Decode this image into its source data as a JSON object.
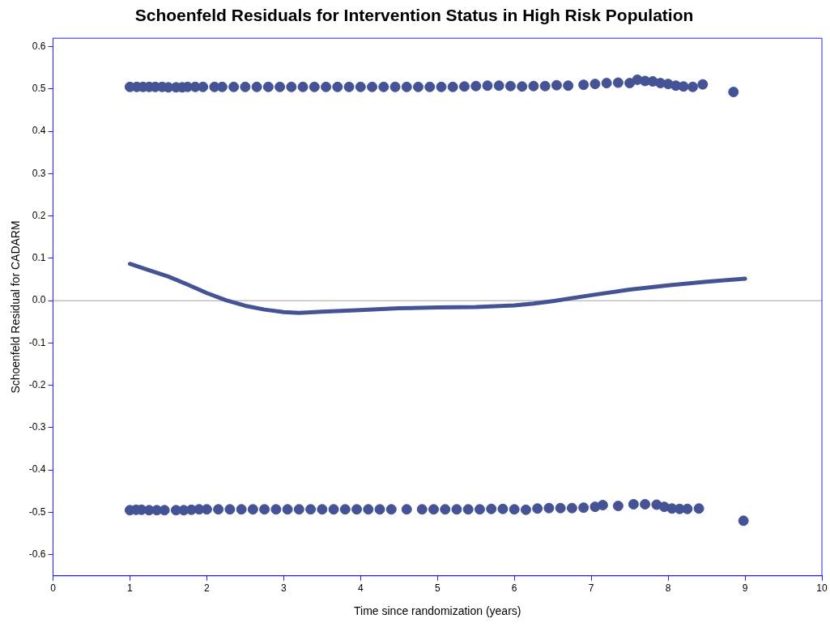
{
  "chart_data": {
    "type": "scatter",
    "title": "Schoenfeld Residuals for Intervention Status in High Risk Population",
    "xlabel": "Time since randomization (years)",
    "ylabel": "Schoenfeld Residual for CADARM",
    "series": [
      {
        "type": "scatter",
        "color": "#445395",
        "x": [
          1.0,
          1.09,
          1.17,
          1.25,
          1.33,
          1.42,
          1.5,
          1.6,
          1.68,
          1.75,
          1.85,
          1.95,
          2.1,
          2.2,
          2.35,
          2.5,
          2.65,
          2.8,
          2.95,
          3.1,
          3.25,
          3.4,
          3.55,
          3.7,
          3.85,
          4.0,
          4.15,
          4.3,
          4.45,
          4.6,
          4.75,
          4.9,
          5.05,
          5.2,
          5.35,
          5.5,
          5.65,
          5.8,
          5.95,
          6.1,
          6.25,
          6.4,
          6.55,
          6.7,
          6.9,
          7.05,
          7.2,
          7.35,
          7.5,
          7.6,
          7.7,
          7.8,
          7.9,
          8.0,
          8.1,
          8.2,
          8.32,
          8.45,
          8.85
        ],
        "values": [
          0.505,
          0.505,
          0.505,
          0.505,
          0.505,
          0.505,
          0.504,
          0.504,
          0.504,
          0.505,
          0.505,
          0.505,
          0.505,
          0.505,
          0.505,
          0.505,
          0.505,
          0.505,
          0.505,
          0.505,
          0.505,
          0.505,
          0.505,
          0.505,
          0.505,
          0.505,
          0.505,
          0.505,
          0.505,
          0.505,
          0.505,
          0.505,
          0.505,
          0.505,
          0.506,
          0.507,
          0.508,
          0.508,
          0.507,
          0.506,
          0.507,
          0.507,
          0.509,
          0.508,
          0.51,
          0.512,
          0.514,
          0.515,
          0.514,
          0.522,
          0.519,
          0.518,
          0.514,
          0.512,
          0.508,
          0.506,
          0.505,
          0.511,
          0.493
        ]
      },
      {
        "type": "scatter",
        "color": "#445395",
        "x": [
          1.0,
          1.08,
          1.15,
          1.25,
          1.35,
          1.45,
          1.6,
          1.7,
          1.8,
          1.9,
          2.0,
          2.15,
          2.3,
          2.45,
          2.6,
          2.75,
          2.9,
          3.05,
          3.2,
          3.35,
          3.5,
          3.65,
          3.8,
          3.95,
          4.1,
          4.25,
          4.4,
          4.6,
          4.8,
          4.95,
          5.1,
          5.25,
          5.4,
          5.55,
          5.7,
          5.85,
          6.0,
          6.15,
          6.3,
          6.45,
          6.6,
          6.75,
          6.9,
          7.05,
          7.15,
          7.35,
          7.55,
          7.7,
          7.85,
          7.95,
          8.05,
          8.15,
          8.25,
          8.4,
          8.98
        ],
        "values": [
          -0.495,
          -0.494,
          -0.494,
          -0.495,
          -0.495,
          -0.495,
          -0.495,
          -0.495,
          -0.494,
          -0.493,
          -0.493,
          -0.493,
          -0.493,
          -0.493,
          -0.493,
          -0.493,
          -0.493,
          -0.493,
          -0.493,
          -0.493,
          -0.493,
          -0.493,
          -0.493,
          -0.493,
          -0.493,
          -0.493,
          -0.493,
          -0.493,
          -0.493,
          -0.493,
          -0.493,
          -0.493,
          -0.493,
          -0.493,
          -0.492,
          -0.492,
          -0.493,
          -0.494,
          -0.491,
          -0.49,
          -0.49,
          -0.49,
          -0.489,
          -0.487,
          -0.483,
          -0.485,
          -0.481,
          -0.481,
          -0.482,
          -0.487,
          -0.491,
          -0.492,
          -0.492,
          -0.491,
          -0.52
        ]
      },
      {
        "type": "line",
        "color": "#445395",
        "marker": "none",
        "x": [
          1.0,
          1.25,
          1.5,
          1.75,
          2.0,
          2.25,
          2.5,
          2.75,
          3.0,
          3.2,
          3.5,
          4.0,
          4.5,
          5.0,
          5.5,
          6.0,
          6.25,
          6.5,
          7.0,
          7.5,
          8.0,
          8.5,
          9.0
        ],
        "values": [
          0.087,
          0.072,
          0.057,
          0.038,
          0.018,
          0.001,
          -0.012,
          -0.021,
          -0.027,
          -0.029,
          -0.026,
          -0.022,
          -0.018,
          -0.016,
          -0.015,
          -0.011,
          -0.007,
          -0.001,
          0.013,
          0.026,
          0.036,
          0.045,
          0.052
        ]
      }
    ],
    "xlim": [
      0,
      10
    ],
    "xticks": [
      0,
      1,
      2,
      3,
      4,
      5,
      6,
      7,
      8,
      9,
      10
    ],
    "ylim": [
      -0.65,
      0.62
    ],
    "yticks": [
      -0.6,
      -0.5,
      -0.4,
      -0.3,
      -0.2,
      -0.1,
      {
        "value": 0,
        "label": "0.0"
      },
      0.1,
      0.2,
      0.3,
      0.4,
      0.5,
      0.6
    ],
    "ref_lines": [
      {
        "axis": "y",
        "value": 0,
        "color": "#a0a0a0"
      }
    ],
    "marker": "circle",
    "grid": false,
    "legend": false
  }
}
